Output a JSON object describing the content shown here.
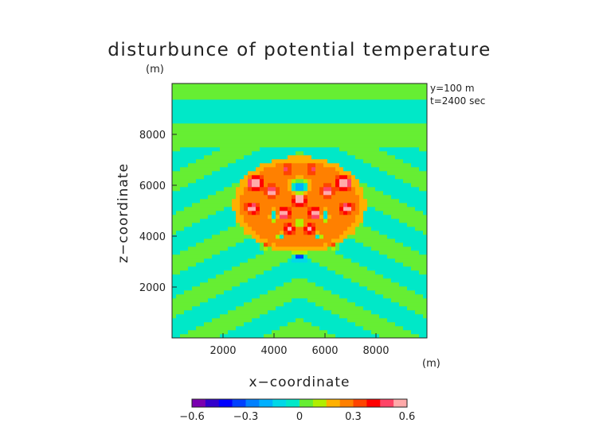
{
  "chart_data": {
    "type": "heatmap",
    "title": "disturbunce of potential temperature",
    "title_unit": "(m)",
    "xlabel": "x−coordinate",
    "ylabel": "z−coordinate",
    "x_unit": "(m)",
    "annotations": [
      "y=100 m",
      "t=2400 sec"
    ],
    "xlim": [
      0,
      10000
    ],
    "ylim": [
      0,
      10000
    ],
    "x_ticks": [
      2000,
      4000,
      6000,
      8000
    ],
    "y_ticks": [
      2000,
      4000,
      6000,
      8000
    ],
    "colorbar": {
      "min": -0.6,
      "max": 0.6,
      "ticks": [
        -0.6,
        -0.3,
        0,
        0.3,
        0.6
      ],
      "tick_labels": [
        "−0.6",
        "−0.3",
        "0",
        "0.3",
        "0.6"
      ],
      "colors": [
        "#7a00b0",
        "#3300cc",
        "#0000ff",
        "#0040ff",
        "#0080ff",
        "#00b0ff",
        "#00d8e8",
        "#00e8c8",
        "#66ee33",
        "#b0ee00",
        "#ffb000",
        "#ff8000",
        "#ff4400",
        "#ff0000",
        "#ff4466",
        "#ffaaaa"
      ]
    },
    "background_value": 0,
    "features": [
      {
        "x": 5000,
        "z": 5950,
        "sx": 320,
        "sz": 260,
        "v": -0.55
      },
      {
        "x": 5000,
        "z": 5450,
        "sx": 220,
        "sz": 180,
        "v": 0.5
      },
      {
        "x": 3250,
        "z": 6100,
        "sx": 230,
        "sz": 200,
        "v": 0.55
      },
      {
        "x": 6750,
        "z": 6100,
        "sx": 230,
        "sz": 200,
        "v": 0.55
      },
      {
        "x": 3900,
        "z": 5750,
        "sx": 160,
        "sz": 160,
        "v": 0.45
      },
      {
        "x": 6100,
        "z": 5750,
        "sx": 160,
        "sz": 160,
        "v": 0.45
      },
      {
        "x": 3150,
        "z": 5100,
        "sx": 180,
        "sz": 150,
        "v": 0.5
      },
      {
        "x": 6850,
        "z": 5100,
        "sx": 180,
        "sz": 150,
        "v": 0.5
      },
      {
        "x": 4000,
        "z": 4800,
        "sx": 130,
        "sz": 200,
        "v": -0.45
      },
      {
        "x": 6000,
        "z": 4800,
        "sx": 130,
        "sz": 200,
        "v": -0.45
      },
      {
        "x": 4400,
        "z": 4900,
        "sx": 180,
        "sz": 160,
        "v": 0.5
      },
      {
        "x": 5600,
        "z": 4900,
        "sx": 180,
        "sz": 160,
        "v": 0.5
      },
      {
        "x": 4600,
        "z": 4300,
        "sx": 140,
        "sz": 140,
        "v": 0.4
      },
      {
        "x": 5400,
        "z": 4300,
        "sx": 140,
        "sz": 140,
        "v": 0.4
      },
      {
        "x": 4250,
        "z": 4000,
        "sx": 120,
        "sz": 120,
        "v": -0.35
      },
      {
        "x": 5750,
        "z": 4000,
        "sx": 120,
        "sz": 120,
        "v": -0.35
      },
      {
        "x": 5000,
        "z": 3200,
        "sx": 200,
        "sz": 130,
        "v": -0.35
      },
      {
        "x": 5000,
        "z": 4550,
        "sx": 150,
        "sz": 150,
        "v": -0.3
      },
      {
        "x": 4500,
        "z": 6650,
        "sx": 100,
        "sz": 150,
        "v": 0.3
      },
      {
        "x": 5500,
        "z": 6650,
        "sx": 100,
        "sz": 150,
        "v": 0.3
      },
      {
        "x": 3650,
        "z": 3600,
        "sx": 200,
        "sz": 120,
        "v": 0.25
      },
      {
        "x": 6350,
        "z": 3600,
        "sx": 200,
        "sz": 120,
        "v": 0.25
      }
    ],
    "halo": {
      "x": 5000,
      "z": 5250,
      "rx": 2600,
      "rz": 1900,
      "v": 0.28
    }
  }
}
